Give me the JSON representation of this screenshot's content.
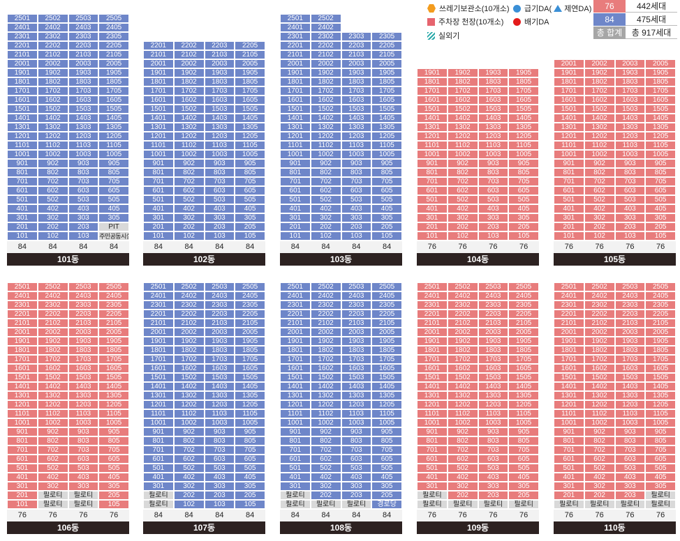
{
  "legend": {
    "trash": "쓰레기보관소(10개소)",
    "supply": "급기DA(",
    "smoke": "제연DA)",
    "parking": "주차장 천장(10개소)",
    "exhaust": "배기DA",
    "outdoor_unit": "실외기"
  },
  "stats": {
    "rows": [
      {
        "label": "76",
        "value": "442세대",
        "color": "#e87c7c"
      },
      {
        "label": "84",
        "value": "475세대",
        "color": "#6e86c9"
      },
      {
        "label": "총 합계",
        "value": "총 917세대",
        "color": "#a6a6a6"
      }
    ]
  },
  "buildings": [
    {
      "name": "101동",
      "color": "blue",
      "top_floor": 25,
      "types": [
        "84",
        "84",
        "84",
        "84"
      ],
      "overrides": {
        "2": [
          "201",
          "202",
          "203",
          "PIT"
        ],
        "1": [
          "101",
          "102",
          "103",
          "주민공동시설"
        ]
      }
    },
    {
      "name": "102동",
      "color": "blue",
      "top_floor": 22,
      "types": [
        "84",
        "84",
        "84",
        "84"
      ],
      "overrides": {}
    },
    {
      "name": "103동",
      "color": "blue",
      "top_floor": 25,
      "types": [
        "84",
        "84",
        "84",
        "84"
      ],
      "overrides": {
        "25": [
          "2501",
          "2502",
          "",
          ""
        ],
        "24": [
          "2401",
          "2402",
          "",
          ""
        ]
      }
    },
    {
      "name": "104동",
      "color": "red",
      "top_floor": 19,
      "types": [
        "76",
        "76",
        "76",
        "76"
      ],
      "overrides": {}
    },
    {
      "name": "105동",
      "color": "red",
      "top_floor": 20,
      "types": [
        "76",
        "76",
        "76",
        "76"
      ],
      "overrides": {}
    },
    {
      "name": "106동",
      "color": "red",
      "top_floor": 25,
      "types": [
        "76",
        "76",
        "76",
        "76"
      ],
      "overrides": {
        "2": [
          "201",
          "필로티",
          "필로티",
          "205"
        ],
        "1": [
          "101",
          "필로티",
          "필로티",
          "105"
        ]
      }
    },
    {
      "name": "107동",
      "color": "blue",
      "top_floor": 25,
      "types": [
        "84",
        "84",
        "84",
        "84"
      ],
      "overrides": {
        "2": [
          "필로티",
          "202",
          "203",
          "205"
        ],
        "1": [
          "필로티",
          "102",
          "103",
          "105"
        ]
      }
    },
    {
      "name": "108동",
      "color": "blue",
      "top_floor": 25,
      "types": [
        "84",
        "84",
        "84",
        "84"
      ],
      "overrides": {
        "2": [
          "필로티",
          "202",
          "203",
          "205"
        ],
        "1": [
          "필로티",
          "필로티",
          "필로티",
          "경로당"
        ]
      }
    },
    {
      "name": "109동",
      "color": "red",
      "top_floor": 25,
      "types": [
        "76",
        "76",
        "76",
        "76"
      ],
      "overrides": {
        "2": [
          "필로티",
          "202",
          "203",
          "205"
        ],
        "1": [
          "필로티",
          "필로티",
          "필로티",
          "필로티"
        ]
      }
    },
    {
      "name": "110동",
      "color": "red",
      "top_floor": 25,
      "types": [
        "76",
        "76",
        "76",
        "76"
      ],
      "overrides": {
        "2": [
          "201",
          "202",
          "203",
          "필로티"
        ],
        "1": [
          "필로티",
          "필로티",
          "필로티",
          "필로티"
        ]
      }
    }
  ]
}
